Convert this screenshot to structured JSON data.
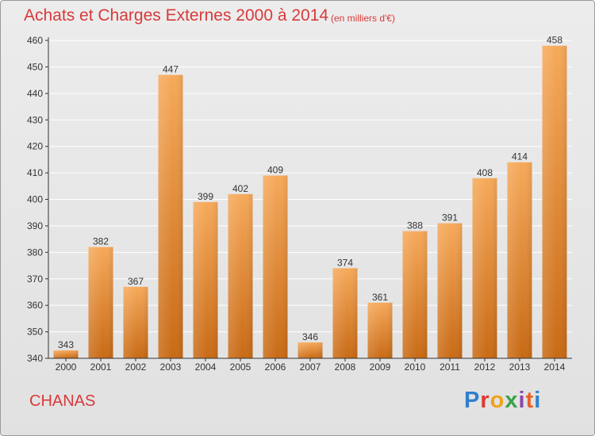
{
  "logo": {
    "text": "Proxiti",
    "colors": [
      "#2f7fd0",
      "#e0372f",
      "#f0a21c",
      "#3aa14a",
      "#8e44ad",
      "#e9612b",
      "#2f7fd0"
    ]
  },
  "chart_data": {
    "type": "bar",
    "title": "Achats et Charges Externes 2000 à 2014",
    "subtitle": "(en milliers d'€)",
    "footer_label": "CHANAS",
    "categories": [
      "2000",
      "2001",
      "2002",
      "2003",
      "2004",
      "2005",
      "2006",
      "2007",
      "2008",
      "2009",
      "2010",
      "2011",
      "2012",
      "2013",
      "2014"
    ],
    "values": [
      343,
      382,
      367,
      447,
      399,
      402,
      409,
      346,
      374,
      361,
      388,
      391,
      408,
      414,
      458
    ],
    "data_labels": [
      "343",
      "382",
      "367",
      "447",
      "399",
      "402",
      "409",
      "346",
      "374",
      "361",
      "388",
      "391",
      "408",
      "414",
      "458"
    ],
    "ylim": [
      340,
      460
    ],
    "yticks": [
      340,
      350,
      360,
      370,
      380,
      390,
      400,
      410,
      420,
      430,
      440,
      450,
      460
    ],
    "xlabel": "",
    "ylabel": "",
    "grid": true,
    "legend": "none",
    "colors": {
      "title": "#d83a3a",
      "bar_light": "#f6a95a",
      "bar_dark": "#c86a15",
      "grid": "#ffffff",
      "axis": "#333333"
    }
  }
}
